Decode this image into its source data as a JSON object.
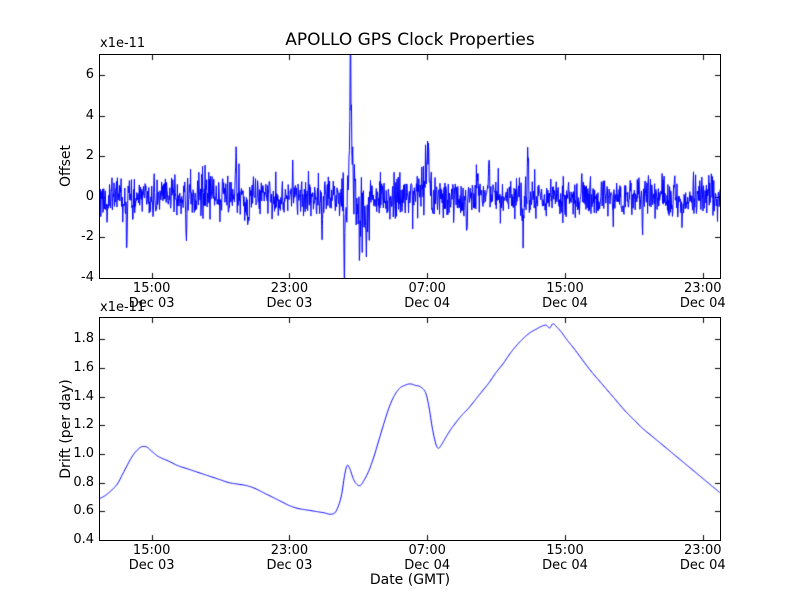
{
  "chart_data": [
    {
      "type": "line",
      "title": "APOLLO GPS Clock Properties",
      "ylabel": "Offset",
      "offset_text": "x1e-11",
      "line_color": "#0000ff",
      "grid": false,
      "xlim_hours": [
        12,
        48
      ],
      "ylim": [
        -4,
        7
      ],
      "ytick_labels": [
        "-4",
        "-2",
        "0",
        "2",
        "4",
        "6"
      ],
      "xticks": [
        {
          "hour": 15,
          "time": "15:00",
          "date": "Dec 03"
        },
        {
          "hour": 23,
          "time": "23:00",
          "date": "Dec 03"
        },
        {
          "hour": 31,
          "time": "07:00",
          "date": "Dec 04"
        },
        {
          "hour": 39,
          "time": "15:00",
          "date": "Dec 04"
        },
        {
          "hour": 47,
          "time": "23:00",
          "date": "Dec 04"
        }
      ],
      "series_spec": {
        "kind": "noisy",
        "n": 1500,
        "baseline": 0,
        "std": 0.5,
        "seed": 20231203,
        "noise_boost": [
          {
            "from": 25.9,
            "to": 27.7,
            "mult": 2.0
          },
          {
            "from": 30.5,
            "to": 31.5,
            "mult": 1.4
          },
          {
            "from": 36.3,
            "to": 37.1,
            "mult": 1.3
          }
        ],
        "spikes": [
          {
            "t": 13.55,
            "w": 0.05,
            "a": -2.0
          },
          {
            "t": 17.0,
            "w": 0.04,
            "a": -1.5
          },
          {
            "t": 19.9,
            "w": 0.04,
            "a": 1.7
          },
          {
            "t": 20.6,
            "w": 0.04,
            "a": -1.4
          },
          {
            "t": 23.2,
            "w": 0.04,
            "a": 1.4
          },
          {
            "t": 24.9,
            "w": 0.04,
            "a": -1.4
          },
          {
            "t": 26.2,
            "w": 0.08,
            "a": -2.0
          },
          {
            "t": 26.55,
            "w": 0.06,
            "a": 6.6
          },
          {
            "t": 26.72,
            "w": 0.25,
            "a": 1.1
          },
          {
            "t": 27.1,
            "w": 0.18,
            "a": -1.4
          },
          {
            "t": 27.5,
            "w": 0.1,
            "a": -2.5
          },
          {
            "t": 31.0,
            "w": 0.15,
            "a": 2.2
          },
          {
            "t": 33.3,
            "w": 0.04,
            "a": -1.6
          },
          {
            "t": 34.6,
            "w": 0.04,
            "a": 1.5
          },
          {
            "t": 36.55,
            "w": 0.06,
            "a": -1.7
          },
          {
            "t": 36.85,
            "w": 0.045,
            "a": 2.9
          },
          {
            "t": 43.5,
            "w": 0.04,
            "a": -1.5
          },
          {
            "t": 45.8,
            "w": 0.04,
            "a": -1.3
          }
        ]
      }
    },
    {
      "type": "line",
      "ylabel": "Drift (per day)",
      "xlabel": "Date (GMT)",
      "offset_text": "x1e-11",
      "line_color": "#0000ff",
      "grid": false,
      "xlim_hours": [
        12,
        48
      ],
      "ylim": [
        0.4,
        1.95
      ],
      "ytick_labels": [
        "0.4",
        "0.6",
        "0.8",
        "1.0",
        "1.2",
        "1.4",
        "1.6",
        "1.8"
      ],
      "xticks": [
        {
          "hour": 15,
          "time": "15:00",
          "date": "Dec 03"
        },
        {
          "hour": 23,
          "time": "23:00",
          "date": "Dec 03"
        },
        {
          "hour": 31,
          "time": "07:00",
          "date": "Dec 04"
        },
        {
          "hour": 39,
          "time": "15:00",
          "date": "Dec 04"
        },
        {
          "hour": 47,
          "time": "23:00",
          "date": "Dec 04"
        }
      ],
      "points": [
        [
          12.0,
          0.69
        ],
        [
          12.3,
          0.71
        ],
        [
          12.6,
          0.74
        ],
        [
          13.0,
          0.79
        ],
        [
          13.4,
          0.88
        ],
        [
          13.8,
          0.97
        ],
        [
          14.1,
          1.02
        ],
        [
          14.4,
          1.05
        ],
        [
          14.7,
          1.05
        ],
        [
          15.0,
          1.02
        ],
        [
          15.3,
          0.99
        ],
        [
          15.6,
          0.97
        ],
        [
          16.0,
          0.95
        ],
        [
          16.5,
          0.92
        ],
        [
          17.0,
          0.9
        ],
        [
          17.5,
          0.88
        ],
        [
          18.0,
          0.86
        ],
        [
          18.5,
          0.84
        ],
        [
          19.0,
          0.82
        ],
        [
          19.5,
          0.8
        ],
        [
          20.0,
          0.79
        ],
        [
          20.5,
          0.78
        ],
        [
          21.0,
          0.76
        ],
        [
          21.5,
          0.73
        ],
        [
          22.0,
          0.7
        ],
        [
          22.5,
          0.67
        ],
        [
          23.0,
          0.64
        ],
        [
          23.5,
          0.62
        ],
        [
          24.0,
          0.61
        ],
        [
          24.5,
          0.6
        ],
        [
          25.0,
          0.59
        ],
        [
          25.4,
          0.58
        ],
        [
          25.7,
          0.6
        ],
        [
          26.0,
          0.7
        ],
        [
          26.2,
          0.85
        ],
        [
          26.35,
          0.92
        ],
        [
          26.5,
          0.9
        ],
        [
          26.7,
          0.83
        ],
        [
          26.9,
          0.79
        ],
        [
          27.1,
          0.78
        ],
        [
          27.3,
          0.81
        ],
        [
          27.6,
          0.88
        ],
        [
          27.9,
          0.98
        ],
        [
          28.2,
          1.1
        ],
        [
          28.5,
          1.22
        ],
        [
          28.8,
          1.33
        ],
        [
          29.1,
          1.41
        ],
        [
          29.4,
          1.46
        ],
        [
          29.7,
          1.48
        ],
        [
          30.0,
          1.49
        ],
        [
          30.3,
          1.48
        ],
        [
          30.6,
          1.47
        ],
        [
          30.9,
          1.43
        ],
        [
          31.1,
          1.33
        ],
        [
          31.3,
          1.18
        ],
        [
          31.5,
          1.07
        ],
        [
          31.65,
          1.04
        ],
        [
          31.8,
          1.06
        ],
        [
          32.0,
          1.1
        ],
        [
          32.3,
          1.16
        ],
        [
          32.6,
          1.21
        ],
        [
          33.0,
          1.27
        ],
        [
          33.4,
          1.32
        ],
        [
          33.8,
          1.38
        ],
        [
          34.2,
          1.44
        ],
        [
          34.6,
          1.5
        ],
        [
          35.0,
          1.57
        ],
        [
          35.4,
          1.63
        ],
        [
          35.8,
          1.7
        ],
        [
          36.2,
          1.76
        ],
        [
          36.6,
          1.81
        ],
        [
          37.0,
          1.85
        ],
        [
          37.3,
          1.87
        ],
        [
          37.6,
          1.89
        ],
        [
          37.9,
          1.9
        ],
        [
          38.1,
          1.88
        ],
        [
          38.3,
          1.91
        ],
        [
          38.5,
          1.89
        ],
        [
          38.8,
          1.85
        ],
        [
          39.1,
          1.8
        ],
        [
          39.5,
          1.74
        ],
        [
          40.0,
          1.66
        ],
        [
          40.5,
          1.58
        ],
        [
          41.0,
          1.51
        ],
        [
          41.5,
          1.44
        ],
        [
          42.0,
          1.37
        ],
        [
          42.5,
          1.3
        ],
        [
          43.0,
          1.24
        ],
        [
          43.5,
          1.18
        ],
        [
          44.0,
          1.13
        ],
        [
          44.5,
          1.08
        ],
        [
          45.0,
          1.03
        ],
        [
          45.5,
          0.98
        ],
        [
          46.0,
          0.93
        ],
        [
          46.5,
          0.88
        ],
        [
          47.0,
          0.83
        ],
        [
          47.4,
          0.79
        ],
        [
          47.8,
          0.75
        ],
        [
          48.0,
          0.73
        ]
      ]
    }
  ]
}
